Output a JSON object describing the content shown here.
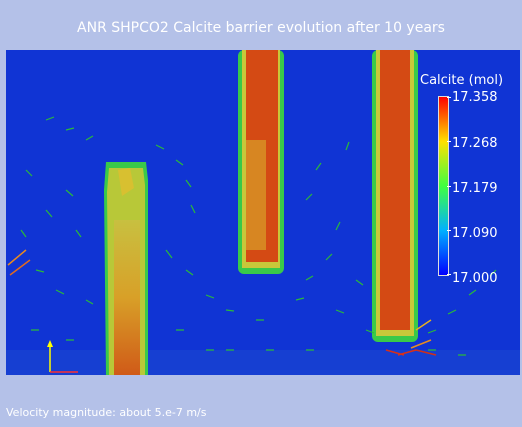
{
  "title": "ANR SHPCO2 Calcite barrier evolution after 10 years",
  "legend": {
    "title": "Calcite (mol)",
    "ticks": [
      "17.358",
      "17.268",
      "17.179",
      "17.090",
      "17.000"
    ]
  },
  "footer": "Velocity magnitude: about 5.e-7 m/s",
  "colors": {
    "background": "#b4c1e8",
    "field_low": "#1034d4",
    "field_high": "#d44a14",
    "rim": "#38c850",
    "glyph": "#2aba3a"
  },
  "axes_icon": "orientation-axes-icon"
}
